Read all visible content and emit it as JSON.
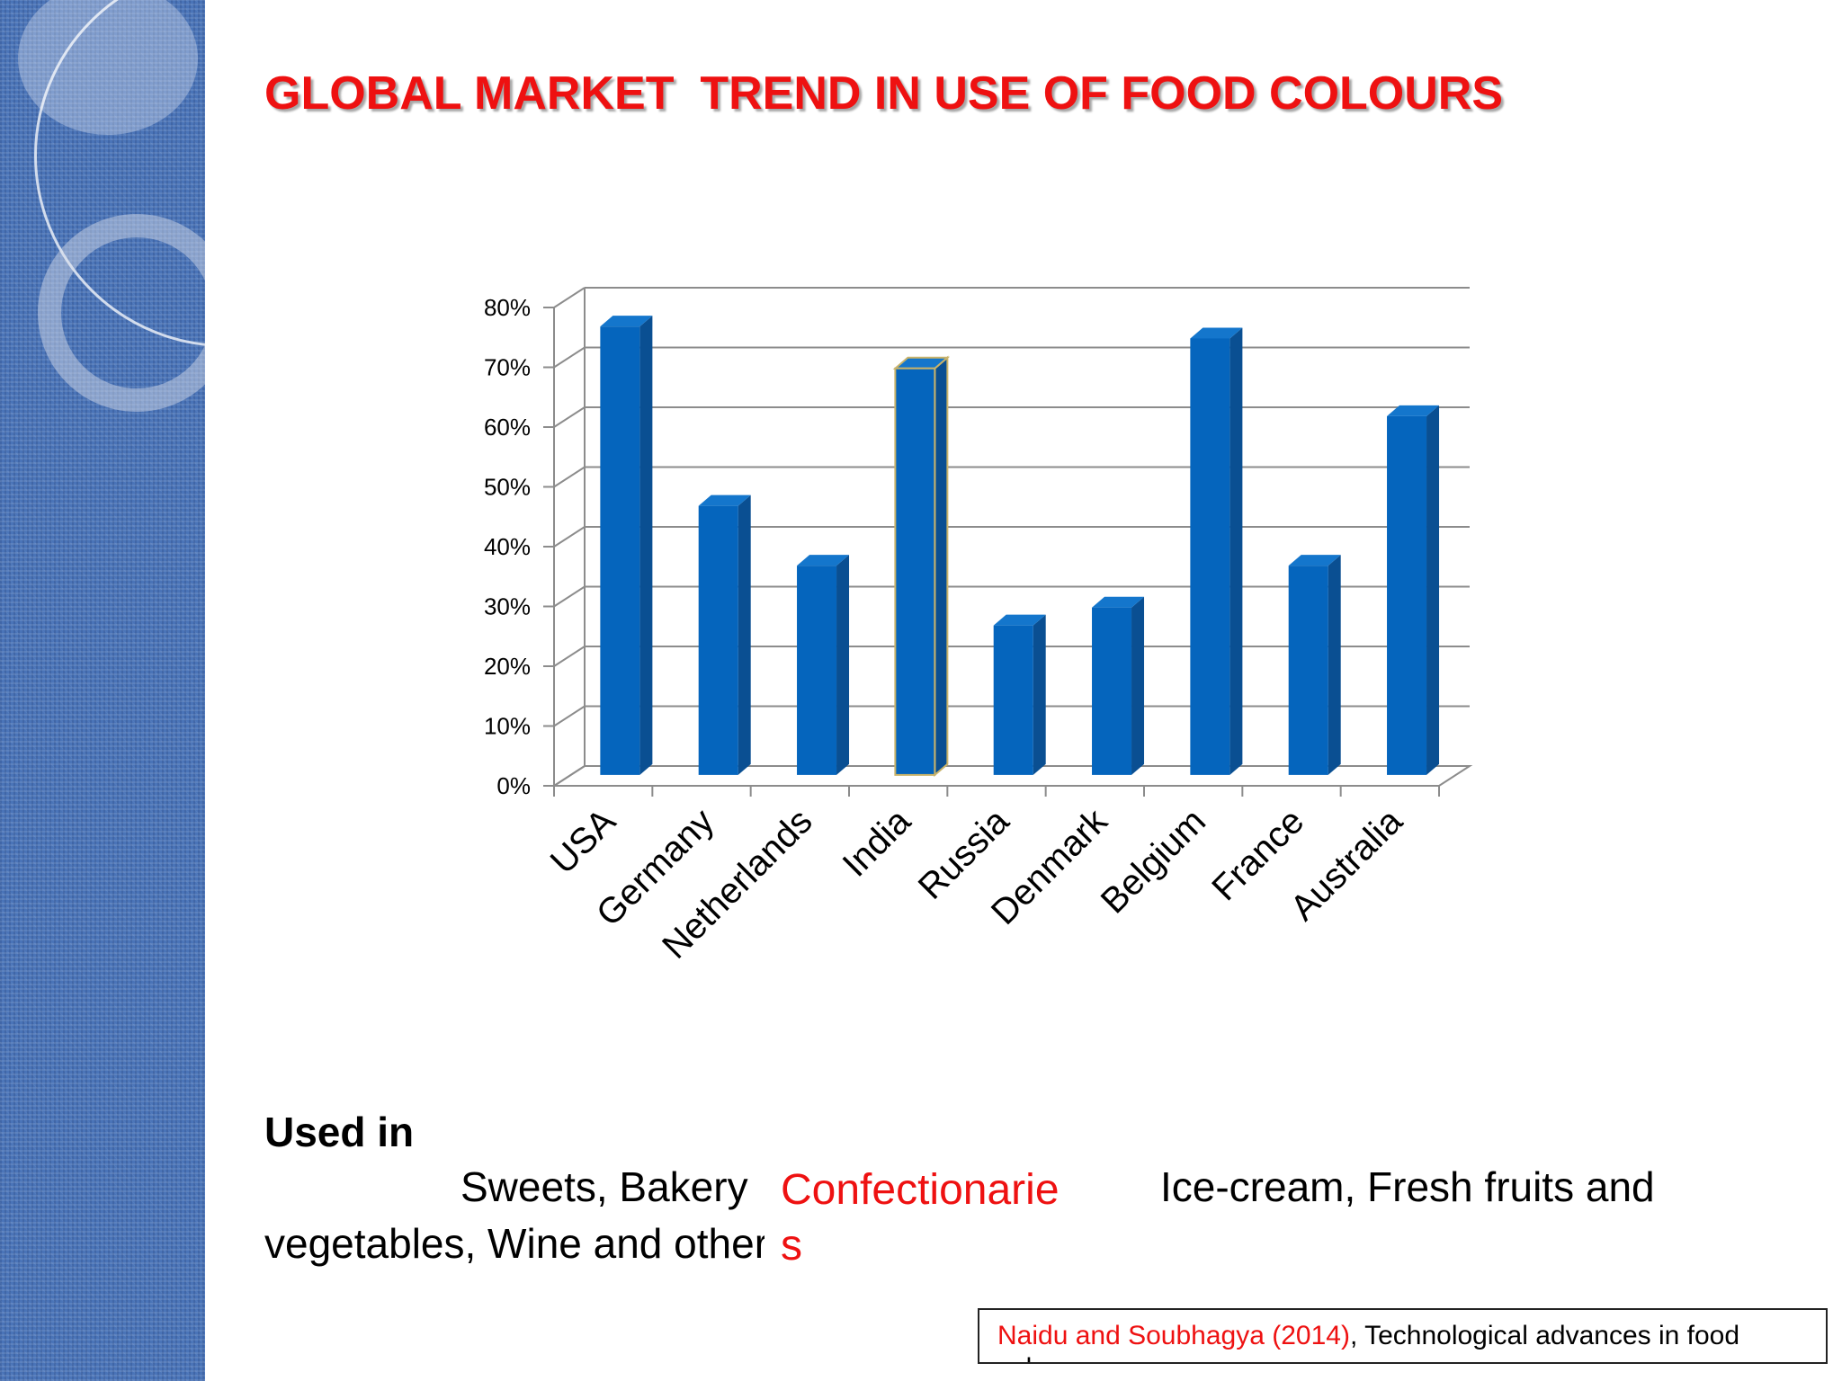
{
  "slide": {
    "title": "GLOBAL MARKET  TREND IN USE OF FOOD COLOURS"
  },
  "chart_data": {
    "type": "bar",
    "categories": [
      "USA",
      "Germany",
      "Netherlands",
      "India",
      "Russia",
      "Denmark",
      "Belgium",
      "France",
      "Australia"
    ],
    "values": [
      75,
      45,
      35,
      68,
      25,
      28,
      73,
      35,
      60
    ],
    "ylim": [
      0,
      80
    ],
    "yticks": [
      "0%",
      "10%",
      "20%",
      "30%",
      "40%",
      "50%",
      "60%",
      "70%",
      "80%"
    ],
    "highlighted_category": "India",
    "bar_color": "#0565bd",
    "grid": true
  },
  "uses": {
    "heading": "Used in",
    "line1_start": "Sweets, Bakery",
    "line1_end": "Ice-cream, Fresh fruits and",
    "line2": "vegetables, Wine and others",
    "overlay_word": "Confectionarie",
    "overlay_tail": "s"
  },
  "citation": {
    "author": "Naidu and Soubhagya (2014)",
    "text": ", Technological advances in food colours"
  },
  "colors": {
    "title": "#ee1111",
    "side_strip": "#4a74b8"
  }
}
